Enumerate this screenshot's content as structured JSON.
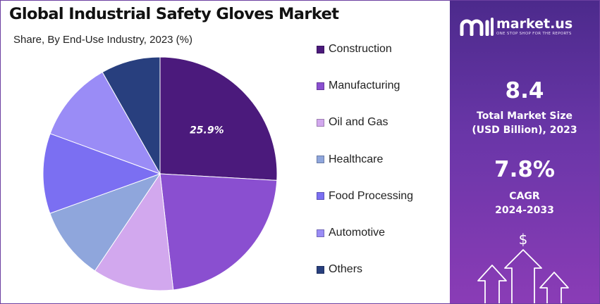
{
  "title": "Global Industrial Safety Gloves Market",
  "subtitle": "Share, By End-Use Industry, 2023 (%)",
  "chart_data": {
    "type": "pie",
    "title": "Global Industrial Safety Gloves Market",
    "subtitle": "Share, By End-Use Industry, 2023 (%)",
    "unit": "%",
    "start": "12 o'clock",
    "direction": "clockwise",
    "legend_position": "right",
    "slices": [
      {
        "label": "Construction",
        "value": 25.9,
        "color": "#4b1a7c",
        "data_label": "25.9%"
      },
      {
        "label": "Manufacturing",
        "value": 22.3,
        "color": "#8a4fd0",
        "data_label": ""
      },
      {
        "label": "Oil and Gas",
        "value": 11.2,
        "color": "#d2a8ee",
        "data_label": ""
      },
      {
        "label": "Healthcare",
        "value": 10.1,
        "color": "#8fa6dc",
        "data_label": ""
      },
      {
        "label": "Food Processing",
        "value": 11.1,
        "color": "#7b6ff2",
        "data_label": ""
      },
      {
        "label": "Automotive",
        "value": 11.2,
        "color": "#9a8cf6",
        "data_label": ""
      },
      {
        "label": "Others",
        "value": 8.2,
        "color": "#283f7e",
        "data_label": ""
      }
    ]
  },
  "sidebar": {
    "brand_name": "market.us",
    "brand_tagline": "ONE STOP SHOP FOR THE REPORTS",
    "logo_icon": "market-us-logo-icon",
    "market_size_value": "8.4",
    "market_size_label_line1": "Total Market Size",
    "market_size_label_line2": "(USD Billion), 2023",
    "cagr_value": "7.8%",
    "cagr_label_line1": "CAGR",
    "cagr_label_line2": "2024-2033",
    "growth_icon": "dollar-growth-arrows-icon",
    "dollar_symbol": "$"
  }
}
